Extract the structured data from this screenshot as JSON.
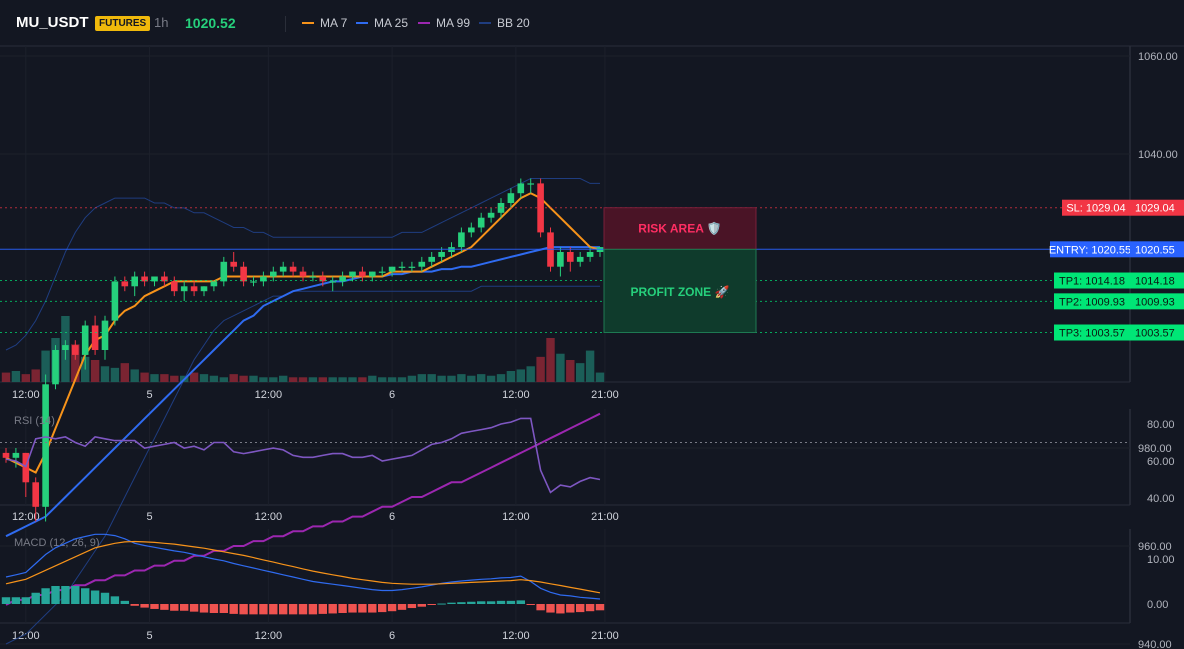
{
  "header": {
    "symbol": "MU_USDT",
    "badge": "FUTURES",
    "timeframe": "1h",
    "last_price": "1020.52",
    "legend": [
      {
        "label": "MA 7",
        "color": "#f7931a"
      },
      {
        "label": "MA 25",
        "color": "#2f6bf0"
      },
      {
        "label": "MA 99",
        "color": "#9c27b0"
      },
      {
        "label": "BB 20",
        "color": "#1f3d80"
      }
    ]
  },
  "colors": {
    "up": "#26d07c",
    "down": "#f23645",
    "vol_up": "#1b5e58",
    "vol_down": "#7a2432",
    "rsi": "#7e57c2",
    "macd": "#2f6bf0",
    "signal": "#f7931a",
    "hist_up": "#26a69a",
    "hist_down": "#ef5350"
  },
  "time_axis_labels": [
    "12:00",
    "5",
    "12:00",
    "6",
    "12:00",
    "21:00"
  ],
  "chart_data": [
    {
      "type": "candlestick",
      "title": "MU_USDT 1h",
      "y_ticks": [
        "1060.00",
        "1040.00",
        "980.00",
        "960.00",
        "940.00"
      ],
      "ylim": [
        930,
        1060
      ],
      "candles": [
        [
          979,
          980,
          977,
          978
        ],
        [
          978,
          980,
          976,
          979
        ],
        [
          979,
          979,
          970,
          973
        ],
        [
          973,
          974,
          965,
          968
        ],
        [
          968,
          995,
          965,
          993
        ],
        [
          993,
          1001,
          992,
          1000
        ],
        [
          1000,
          1002,
          998,
          1001
        ],
        [
          1001,
          1002,
          998,
          999
        ],
        [
          999,
          1006,
          996,
          1005
        ],
        [
          1005,
          1007,
          999,
          1000
        ],
        [
          1000,
          1007,
          998,
          1006
        ],
        [
          1006,
          1015,
          1005,
          1014
        ],
        [
          1014,
          1015,
          1012,
          1013
        ],
        [
          1013,
          1016,
          1011,
          1015
        ],
        [
          1015,
          1016,
          1013,
          1014
        ],
        [
          1014,
          1015,
          1013,
          1015
        ],
        [
          1015,
          1016,
          1013,
          1014
        ],
        [
          1014,
          1015,
          1011,
          1012
        ],
        [
          1012,
          1014,
          1010,
          1013
        ],
        [
          1013,
          1014,
          1011,
          1012
        ],
        [
          1012,
          1013,
          1011,
          1013
        ],
        [
          1013,
          1014,
          1012,
          1014
        ],
        [
          1014,
          1019,
          1013,
          1018
        ],
        [
          1018,
          1020,
          1016,
          1017
        ],
        [
          1017,
          1018,
          1013,
          1014
        ],
        [
          1014,
          1015,
          1013,
          1014
        ],
        [
          1014,
          1016,
          1013,
          1015
        ],
        [
          1015,
          1017,
          1014,
          1016
        ],
        [
          1016,
          1018,
          1015,
          1017
        ],
        [
          1017,
          1018,
          1015,
          1016
        ],
        [
          1016,
          1017,
          1014,
          1015
        ],
        [
          1015,
          1016,
          1014,
          1015
        ],
        [
          1015,
          1016,
          1013,
          1014
        ],
        [
          1014,
          1015,
          1012,
          1014
        ],
        [
          1014,
          1016,
          1013,
          1015
        ],
        [
          1015,
          1016,
          1014,
          1016
        ],
        [
          1016,
          1017,
          1014,
          1015
        ],
        [
          1015,
          1016,
          1014,
          1016
        ],
        [
          1016,
          1017,
          1015,
          1016
        ],
        [
          1016,
          1017,
          1015,
          1017
        ],
        [
          1017,
          1018,
          1016,
          1017
        ],
        [
          1017,
          1018,
          1016,
          1017
        ],
        [
          1017,
          1019,
          1016,
          1018
        ],
        [
          1018,
          1020,
          1017,
          1019
        ],
        [
          1019,
          1021,
          1018,
          1020
        ],
        [
          1020,
          1022,
          1019,
          1021
        ],
        [
          1021,
          1025,
          1020,
          1024
        ],
        [
          1024,
          1026,
          1023,
          1025
        ],
        [
          1025,
          1028,
          1024,
          1027
        ],
        [
          1027,
          1029,
          1026,
          1028
        ],
        [
          1028,
          1031,
          1027,
          1030
        ],
        [
          1030,
          1033,
          1029,
          1032
        ],
        [
          1032,
          1035,
          1031,
          1034
        ],
        [
          1034,
          1035,
          1032,
          1034
        ],
        [
          1034,
          1035,
          1023,
          1024
        ],
        [
          1024,
          1025,
          1016,
          1017
        ],
        [
          1017,
          1021,
          1015,
          1020
        ],
        [
          1020,
          1021,
          1016,
          1018
        ],
        [
          1018,
          1020,
          1017,
          1019
        ],
        [
          1019,
          1021,
          1018,
          1020
        ],
        [
          1020,
          1021,
          1019,
          1021
        ]
      ],
      "volume": [
        6,
        7,
        5,
        8,
        20,
        28,
        42,
        24,
        16,
        14,
        10,
        9,
        12,
        8,
        6,
        5,
        5,
        4,
        4,
        6,
        5,
        4,
        3,
        5,
        4,
        4,
        3,
        3,
        4,
        3,
        3,
        3,
        3,
        3,
        3,
        3,
        3,
        4,
        3,
        3,
        3,
        4,
        5,
        5,
        4,
        4,
        5,
        4,
        5,
        4,
        5,
        7,
        8,
        10,
        16,
        28,
        18,
        14,
        12,
        20,
        6
      ],
      "moving_averages": [
        {
          "name": "MA 7",
          "values": [
            978,
            977,
            976,
            975,
            979,
            984,
            989,
            994,
            999,
            1002,
            1003,
            1006,
            1008,
            1009,
            1011,
            1012,
            1013,
            1014,
            1014,
            1014,
            1014,
            1014,
            1015,
            1015,
            1015,
            1015,
            1015,
            1015,
            1015,
            1015,
            1015,
            1015,
            1015,
            1015,
            1015,
            1015,
            1015,
            1015,
            1015,
            1016,
            1016,
            1016,
            1016,
            1017,
            1018,
            1019,
            1020,
            1021,
            1023,
            1025,
            1027,
            1029,
            1031,
            1032,
            1031,
            1029,
            1027,
            1025,
            1023,
            1021,
            1020.5
          ]
        },
        {
          "name": "MA 25",
          "values": [
            962,
            963,
            964,
            965,
            966,
            968,
            970,
            972,
            974,
            976,
            978,
            980,
            982,
            984,
            986,
            988,
            990,
            992,
            994,
            996,
            998,
            1000,
            1002,
            1004,
            1006,
            1007,
            1009,
            1010,
            1011,
            1012,
            1012.5,
            1013,
            1013.5,
            1014,
            1014,
            1014.5,
            1015,
            1015,
            1015,
            1015.5,
            1015.5,
            1016,
            1016,
            1016,
            1016.5,
            1016.5,
            1017,
            1017,
            1017.5,
            1018,
            1018.5,
            1019,
            1019.5,
            1020,
            1020.5,
            1021,
            1021,
            1021,
            1021,
            1021,
            1021
          ]
        },
        {
          "name": "MA 99",
          "values": [
            948,
            949,
            949,
            950,
            950,
            951,
            951,
            952,
            952,
            953,
            953,
            954,
            954,
            955,
            955,
            956,
            956,
            957,
            957,
            958,
            958,
            959,
            959,
            960,
            960,
            961,
            961,
            962,
            962,
            963,
            963,
            964,
            964,
            965,
            965,
            966,
            966,
            967,
            968,
            968,
            969,
            970,
            970,
            971,
            972,
            973,
            973,
            974,
            975,
            976,
            977,
            978,
            979,
            980,
            981,
            982,
            983,
            984,
            985,
            986,
            987
          ]
        },
        {
          "name": "BB 20 upper",
          "values": [
            1000,
            1001,
            1003,
            1006,
            1010,
            1015,
            1020,
            1024,
            1027,
            1029,
            1030,
            1031,
            1031,
            1031,
            1031,
            1030,
            1030,
            1029,
            1029,
            1028,
            1028,
            1027,
            1026,
            1025,
            1025,
            1024,
            1024,
            1023,
            1023,
            1023,
            1023,
            1023,
            1023,
            1023,
            1023,
            1023,
            1023,
            1023,
            1023,
            1023,
            1024,
            1024,
            1024,
            1025,
            1026,
            1027,
            1028,
            1029,
            1030,
            1031,
            1032,
            1033,
            1034,
            1035,
            1035,
            1035,
            1035,
            1035,
            1035,
            1034,
            1034
          ]
        },
        {
          "name": "BB 20 lower",
          "values": [
            940,
            941,
            942,
            944,
            946,
            948,
            950,
            953,
            956,
            959,
            962,
            966,
            970,
            974,
            978,
            982,
            986,
            990,
            994,
            998,
            1001,
            1004,
            1006,
            1007,
            1008,
            1009,
            1010,
            1011,
            1011,
            1012,
            1012,
            1012,
            1012,
            1012,
            1012,
            1012,
            1012,
            1012,
            1012,
            1012,
            1012,
            1012,
            1012,
            1012,
            1012,
            1012,
            1012,
            1012,
            1013,
            1013,
            1013,
            1013,
            1013,
            1013,
            1013,
            1013,
            1013,
            1013,
            1013,
            1013,
            1013
          ]
        }
      ],
      "levels": [
        {
          "label": "SL: 1029.04",
          "value": 1029.04,
          "price_label": "1029.04",
          "color": "#f23645"
        },
        {
          "label": "ENTRY: 1020.55",
          "value": 1020.55,
          "price_label": "1020.55",
          "color": "#2962ff"
        },
        {
          "label": "TP1: 1014.18",
          "value": 1014.18,
          "price_label": "1014.18",
          "color": "#00e676"
        },
        {
          "label": "TP2: 1009.93",
          "value": 1009.93,
          "price_label": "1009.93",
          "color": "#00e676"
        },
        {
          "label": "TP3: 1003.57",
          "value": 1003.57,
          "price_label": "1003.57",
          "color": "#00e676"
        }
      ],
      "zones": {
        "risk": "RISK AREA 🛡️",
        "profit": "PROFIT ZONE 🚀"
      }
    },
    {
      "type": "line",
      "title": "RSI (14)",
      "y_ticks": [
        "80.00",
        "60.00",
        "40.00"
      ],
      "ylim": [
        38,
        87
      ],
      "overbought": 70,
      "values": [
        61,
        60,
        57,
        72,
        73,
        72,
        73,
        70,
        68,
        73,
        72,
        71,
        71,
        71,
        67,
        68,
        69,
        70,
        67,
        68,
        66,
        70,
        70,
        65,
        64,
        65,
        66,
        67,
        66,
        63,
        62,
        62,
        63,
        64,
        64,
        62,
        62,
        63,
        60,
        61,
        62,
        63,
        66,
        69,
        70,
        72,
        75,
        76,
        77,
        78,
        80,
        81,
        83,
        83,
        55,
        43,
        47,
        46,
        49,
        51,
        50
      ]
    },
    {
      "type": "line",
      "title": "MACD (12, 26, 9)",
      "y_ticks": [
        "10.00",
        "0.00"
      ],
      "ylim": [
        -4,
        17
      ],
      "macd": [
        6,
        6.5,
        7,
        9,
        11,
        12.5,
        13.5,
        14.5,
        15,
        15.5,
        15.5,
        15.2,
        14.5,
        13.5,
        13,
        12.6,
        12.2,
        11.8,
        11.5,
        11,
        10.5,
        10,
        9.6,
        9,
        8.5,
        8,
        7.5,
        7,
        6.5,
        6,
        5.5,
        5,
        4.7,
        4.4,
        4.1,
        3.8,
        3.5,
        3.2,
        3,
        3,
        3.2,
        3.5,
        3.8,
        4.2,
        4.6,
        4.9,
        5.1,
        5.3,
        5.5,
        5.6,
        5.8,
        5.9,
        6.2,
        5,
        3.5,
        2.6,
        2,
        1.8,
        1.5,
        1.3,
        1.1
      ],
      "signal": [
        4.5,
        5,
        5.5,
        6.5,
        7.5,
        8.5,
        9.5,
        10.5,
        11.5,
        12.5,
        13,
        13.5,
        13.8,
        13.9,
        13.8,
        13.7,
        13.5,
        13.3,
        13,
        12.7,
        12.4,
        12,
        11.6,
        11.2,
        10.8,
        10.3,
        9.8,
        9.3,
        8.8,
        8.3,
        7.8,
        7.3,
        6.9,
        6.5,
        6.1,
        5.7,
        5.4,
        5.1,
        4.8,
        4.6,
        4.5,
        4.4,
        4.4,
        4.4,
        4.5,
        4.6,
        4.7,
        4.8,
        4.9,
        5,
        5.1,
        5.2,
        5.4,
        5.2,
        4.9,
        4.5,
        4.1,
        3.7,
        3.3,
        2.9,
        2.5
      ]
    }
  ]
}
